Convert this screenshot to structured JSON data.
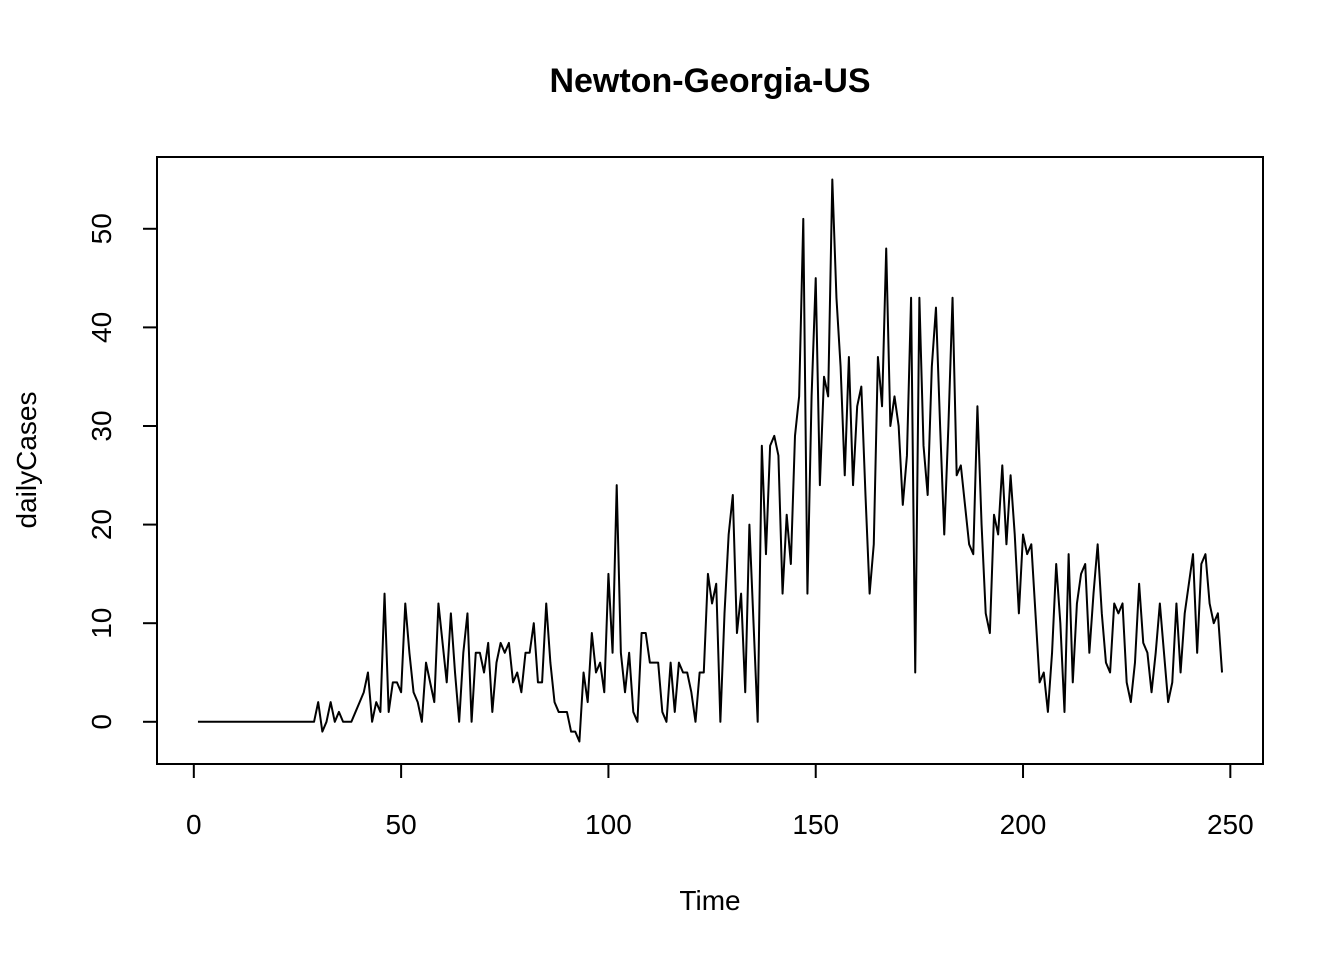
{
  "chart_data": {
    "type": "line",
    "title": "Newton-Georgia-US",
    "xlabel": "Time",
    "ylabel": "dailyCases",
    "xlim": [
      1,
      248
    ],
    "ylim": [
      -2,
      55
    ],
    "x_ticks": [
      0,
      50,
      100,
      150,
      200,
      250
    ],
    "x_tick_labels": [
      "0",
      "50",
      "100",
      "150",
      "200",
      "250"
    ],
    "y_ticks": [
      0,
      10,
      20,
      30,
      40,
      50
    ],
    "y_tick_labels": [
      "0",
      "10",
      "20",
      "30",
      "40",
      "50"
    ],
    "grid": false,
    "legend": "none",
    "line_color": "#000000",
    "series": [
      {
        "x_start": 1,
        "values": [
          0,
          0,
          0,
          0,
          0,
          0,
          0,
          0,
          0,
          0,
          0,
          0,
          0,
          0,
          0,
          0,
          0,
          0,
          0,
          0,
          0,
          0,
          0,
          0,
          0,
          0,
          0,
          0,
          0,
          2,
          -1,
          0,
          2,
          0,
          1,
          0,
          0,
          0,
          1,
          2,
          3,
          5,
          0,
          2,
          1,
          13,
          1,
          4,
          4,
          3,
          12,
          7,
          3,
          2,
          0,
          6,
          4,
          2,
          12,
          8,
          4,
          11,
          5,
          0,
          7,
          11,
          0,
          7,
          7,
          5,
          8,
          1,
          6,
          8,
          7,
          8,
          4,
          5,
          3,
          7,
          7,
          10,
          4,
          4,
          12,
          6,
          2,
          1,
          1,
          1,
          -1,
          -1,
          -2,
          5,
          2,
          9,
          5,
          6,
          3,
          15,
          7,
          24,
          7,
          3,
          7,
          1,
          0,
          9,
          9,
          6,
          6,
          6,
          1,
          0,
          6,
          1,
          6,
          5,
          5,
          3,
          0,
          5,
          5,
          15,
          12,
          14,
          0,
          11,
          19,
          23,
          9,
          13,
          3,
          20,
          10,
          0,
          28,
          17,
          28,
          29,
          27,
          13,
          21,
          16,
          29,
          33,
          51,
          13,
          33,
          45,
          24,
          35,
          33,
          55,
          43,
          36,
          25,
          37,
          24,
          32,
          34,
          23,
          13,
          18,
          37,
          32,
          48,
          30,
          33,
          30,
          22,
          27,
          43,
          5,
          43,
          28,
          23,
          36,
          42,
          30,
          19,
          30,
          43,
          25,
          26,
          22,
          18,
          17,
          32,
          20,
          11,
          9,
          21,
          19,
          26,
          18,
          25,
          19,
          11,
          19,
          17,
          18,
          11,
          4,
          5,
          1,
          7,
          16,
          10,
          1,
          17,
          4,
          12,
          15,
          16,
          7,
          13,
          18,
          11,
          6,
          5,
          12,
          11,
          12,
          4,
          2,
          6,
          14,
          8,
          7,
          3,
          7,
          12,
          7,
          2,
          4,
          12,
          5,
          11,
          14,
          17,
          7,
          16,
          17,
          12,
          10,
          11,
          5
        ]
      }
    ]
  }
}
